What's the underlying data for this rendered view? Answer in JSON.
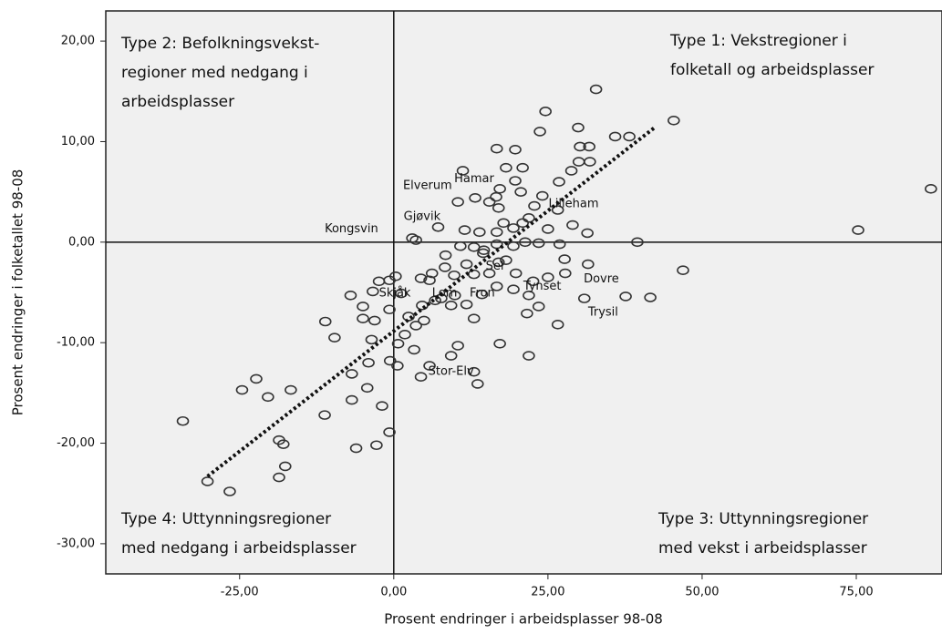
{
  "chart_data": {
    "type": "scatter",
    "x_label": "Prosent endringer i arbeidsplasser 98-08",
    "y_label": "Prosent endringer i folketallet 98-08",
    "xlim": [
      -46.7,
      88.9
    ],
    "ylim": [
      -33.0,
      23.0
    ],
    "xticks": [
      {
        "value": -25,
        "label": "-25,00"
      },
      {
        "value": 0,
        "label": "0,00"
      },
      {
        "value": 25,
        "label": "25,00"
      },
      {
        "value": 50,
        "label": "50,00"
      },
      {
        "value": 75,
        "label": "75,00"
      }
    ],
    "yticks": [
      {
        "value": -30,
        "label": "-30,00"
      },
      {
        "value": -20,
        "label": "-20,00"
      },
      {
        "value": -10,
        "label": "-10,00"
      },
      {
        "value": 0,
        "label": "0,00"
      },
      {
        "value": 10,
        "label": "10,00"
      },
      {
        "value": 20,
        "label": "20,00"
      }
    ],
    "reference_lines": {
      "x": 0,
      "y": 0
    },
    "color": "#333333",
    "x": [
      87.1,
      75.3,
      46.9,
      39.5,
      41.6,
      45.4,
      32.8,
      24.6,
      23.7,
      29.9,
      30.2,
      31.7,
      35.9,
      38.2,
      31.8,
      30.0,
      28.8,
      26.8,
      19.7,
      16.7,
      18.2,
      20.9,
      11.2,
      19.7,
      20.6,
      24.1,
      17.2,
      10.4,
      13.2,
      15.5,
      16.6,
      17.0,
      17.8,
      20.9,
      21.9,
      22.8,
      26.6,
      29.0,
      31.4,
      25.0,
      19.4,
      16.7,
      13.9,
      11.5,
      7.2,
      3.0,
      3.6,
      8.4,
      10.8,
      13.0,
      14.6,
      16.7,
      19.4,
      21.3,
      23.5,
      26.9,
      31.5,
      27.7,
      25.0,
      22.6,
      19.8,
      18.2,
      14.5,
      11.8,
      9.8,
      8.3,
      6.2,
      4.4,
      0.3,
      -0.7,
      -2.4,
      -3.4,
      1.2,
      4.6,
      7.7,
      9.9,
      14.3,
      16.7,
      19.4,
      21.9,
      21.6,
      23.5,
      26.6,
      30.9,
      37.6,
      11.8,
      9.3,
      4.9,
      2.4,
      3.6,
      -0.7,
      -3.1,
      1.8,
      10.4,
      9.3,
      3.3,
      -0.6,
      -4.1,
      0.6,
      4.4,
      5.8,
      13.0,
      17.2,
      21.9,
      13.6,
      -11.1,
      -9.6,
      -6.8,
      -6.8,
      -4.3,
      -1.9,
      -2.8,
      -0.7,
      -6.1,
      -11.2,
      -16.7,
      -20.4,
      -22.3,
      -24.6,
      -34.2,
      -30.2,
      -26.6,
      -18.6,
      -17.9,
      -17.6,
      -18.6,
      0.7,
      13.0,
      15.5,
      17.0,
      5.8,
      6.7,
      27.8,
      -7.0,
      -5.0,
      -5.0,
      -3.6,
      13.0
    ],
    "y": [
      5.3,
      1.2,
      -2.8,
      0,
      -5.5,
      12.1,
      15.2,
      13.0,
      11.0,
      11.4,
      9.5,
      9.5,
      10.5,
      10.5,
      8.0,
      8.0,
      7.1,
      6.0,
      9.2,
      9.3,
      7.4,
      7.4,
      7.1,
      6.1,
      5.0,
      4.6,
      5.3,
      4.0,
      4.4,
      4.0,
      4.5,
      3.4,
      1.9,
      1.9,
      2.4,
      3.6,
      3.2,
      1.7,
      0.9,
      1.3,
      1.4,
      1.0,
      1.0,
      1.2,
      1.5,
      0.4,
      0.2,
      -1.3,
      -0.4,
      -0.5,
      -0.8,
      -0.2,
      -0.4,
      0,
      -0.1,
      -0.2,
      -2.2,
      -1.7,
      -3.5,
      -3.9,
      -3.1,
      -1.8,
      -1.1,
      -2.2,
      -3.3,
      -2.5,
      -3.1,
      -3.6,
      -3.4,
      -3.8,
      -3.9,
      -4.9,
      -5.1,
      -6.3,
      -5.6,
      -5.3,
      -5.2,
      -4.4,
      -4.7,
      -5.3,
      -7.1,
      -6.4,
      -8.2,
      -5.6,
      -5.4,
      -6.2,
      -6.3,
      -7.8,
      -7.4,
      -8.3,
      -6.7,
      -7.8,
      -9.2,
      -10.3,
      -11.3,
      -10.7,
      -11.8,
      -12.0,
      -12.3,
      -13.4,
      -12.3,
      -12.9,
      -10.1,
      -11.3,
      -14.1,
      -7.9,
      -9.5,
      -13.1,
      -15.7,
      -14.5,
      -16.3,
      -20.2,
      -18.9,
      -20.5,
      -17.2,
      -14.7,
      -15.4,
      -13.6,
      -14.7,
      -17.8,
      -23.8,
      -24.8,
      -23.4,
      -20.1,
      -22.3,
      -19.7,
      -10.1,
      -3.2,
      -3.1,
      -2.0,
      -3.8,
      -5.8,
      -3.1,
      -5.3,
      -6.4,
      -7.6,
      -9.7,
      -7.6
    ],
    "trend_line": {
      "x": [
        -30.2,
        42.3
      ],
      "y": [
        -23.3,
        11.4
      ]
    },
    "point_labels": [
      {
        "text": "Elverum",
        "x": 1.5,
        "y": 5.6
      },
      {
        "text": "Hamar",
        "x": 9.8,
        "y": 6.3
      },
      {
        "text": "Lilleham",
        "x": 25.1,
        "y": 3.8
      },
      {
        "text": "Gjøvik",
        "x": 1.6,
        "y": 2.5
      },
      {
        "text": "Kongsvin",
        "x": -11.2,
        "y": 1.3
      },
      {
        "text": "Sel",
        "x": 14.9,
        "y": -2.4
      },
      {
        "text": "Skjåk",
        "x": -2.4,
        "y": -5.1
      },
      {
        "text": "Lom",
        "x": 6.2,
        "y": -5.1
      },
      {
        "text": "Fron",
        "x": 12.3,
        "y": -5.1
      },
      {
        "text": "Tynset",
        "x": 21.0,
        "y": -4.4
      },
      {
        "text": "Dovre",
        "x": 30.8,
        "y": -3.7
      },
      {
        "text": "Trysil",
        "x": 31.5,
        "y": -7.0
      },
      {
        "text": "Stor-Elv",
        "x": 5.6,
        "y": -12.9
      }
    ],
    "quadrant_labels": [
      [
        "Type 2: Befolkningsvekst-",
        "regioner med nedgang i",
        "arbeidsplasser"
      ],
      [
        "Type 1: Vekstregioner i",
        "folketall og arbeidsplasser"
      ],
      [
        "Type 4: Uttynningsregioner",
        "med nedgang i arbeidsplasser"
      ],
      [
        "Type 3: Uttynningsregioner",
        "med vekst i arbeidsplasser"
      ]
    ]
  }
}
